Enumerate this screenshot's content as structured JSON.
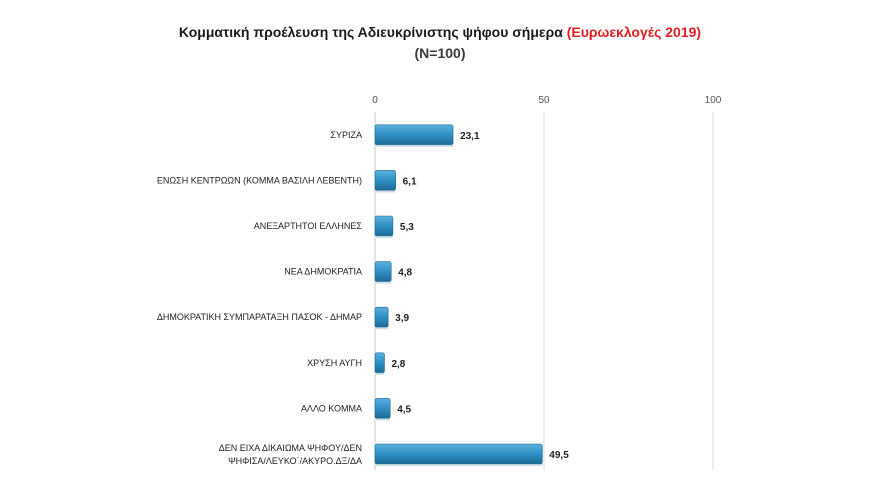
{
  "title": {
    "main": "Κομματική προέλευση της Αδιευκρίνιστης ψήφου σήμερα",
    "accent": "(Ευρωεκλογές 2019)",
    "subtitle": "(N=100)"
  },
  "colors": {
    "bar": "#2f8fc4",
    "bar_light": "#5bb1de",
    "bar_dark": "#1d6a96",
    "accent": "#e02020",
    "grid": "#d9d9d9"
  },
  "chart_data": {
    "type": "bar",
    "orientation": "horizontal",
    "categories": [
      "ΣΥΡΙΖΑ",
      "ΕΝΩΣΗ ΚΕΝΤΡΩΩΝ (ΚΟΜΜΑ ΒΑΣΙΛΗ ΛΕΒΕΝΤΗ)",
      "ΑΝΕΞΑΡΤΗΤΟΙ ΕΛΛΗΝΕΣ",
      "ΝΕΑ ΔΗΜΟΚΡΑΤΙΑ",
      "ΔΗΜΟΚΡΑΤΙΚΗ ΣΥΜΠΑΡΑΤΑΞΗ ΠΑΣΟΚ - ΔΗΜΑΡ",
      "ΧΡΥΣΗ ΑΥΓΗ",
      "ΑΛΛΟ ΚΟΜΜΑ",
      "ΔΕΝ ΕΙΧΑ ΔΙΚΑΙΩΜΑ ΨΗΦΟΥ/ΔΕΝ ΨΗΦΙΣΑ/ΛΕΥΚΟ΄/ΑΚΥΡΟ.ΔΞ/ΔΑ"
    ],
    "category_lines": [
      [
        "ΣΥΡΙΖΑ"
      ],
      [
        "ΕΝΩΣΗ ΚΕΝΤΡΩΩΝ (ΚΟΜΜΑ ΒΑΣΙΛΗ ΛΕΒΕΝΤΗ)"
      ],
      [
        "ΑΝΕΞΑΡΤΗΤΟΙ ΕΛΛΗΝΕΣ"
      ],
      [
        "ΝΕΑ ΔΗΜΟΚΡΑΤΙΑ"
      ],
      [
        "ΔΗΜΟΚΡΑΤΙΚΗ ΣΥΜΠΑΡΑΤΑΞΗ ΠΑΣΟΚ - ΔΗΜΑΡ"
      ],
      [
        "ΧΡΥΣΗ ΑΥΓΗ"
      ],
      [
        "ΑΛΛΟ ΚΟΜΜΑ"
      ],
      [
        "ΔΕΝ ΕΙΧΑ ΔΙΚΑΙΩΜΑ ΨΗΦΟΥ/ΔΕΝ",
        "ΨΗΦΙΣΑ/ΛΕΥΚΟ΄/ΑΚΥΡΟ.ΔΞ/ΔΑ"
      ]
    ],
    "values": [
      23.1,
      6.1,
      5.3,
      4.8,
      3.9,
      2.8,
      4.5,
      49.5
    ],
    "value_labels": [
      "23,1",
      "6,1",
      "5,3",
      "4,8",
      "3,9",
      "2,8",
      "4,5",
      "49,5"
    ],
    "xlim": [
      0,
      100
    ],
    "xticks": [
      0,
      50,
      100
    ],
    "axis_position": "top",
    "grid": true,
    "legend": "none"
  }
}
